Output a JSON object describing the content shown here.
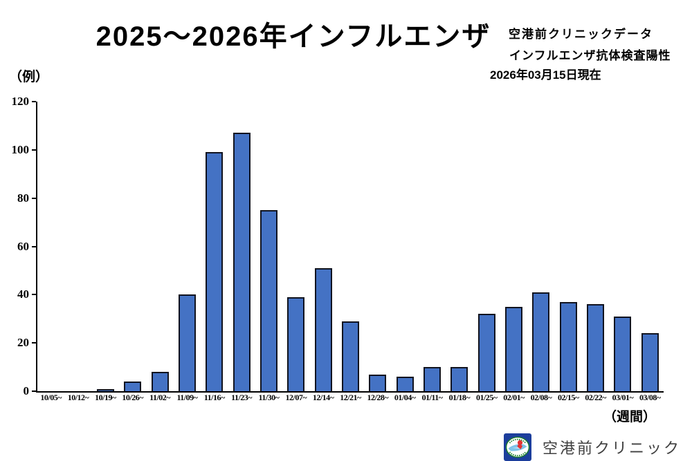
{
  "header": {
    "title": "2025〜2026年インフルエンザ",
    "source_line1": "空港前クリニックデータ",
    "source_line2": "インフルエンザ抗体検査陽性",
    "as_of": "2026年03月15日現在"
  },
  "axes": {
    "y_unit": "（例）",
    "x_unit": "（週間）"
  },
  "footer": {
    "clinic_name": "空港前クリニック"
  },
  "colors": {
    "bar_fill": "#4472C4",
    "bar_border": "#10131f",
    "axis": "#000000"
  },
  "chart_data": {
    "type": "bar",
    "title": "2025〜2026年インフルエンザ",
    "subtitle": "空港前クリニックデータ インフルエンザ抗体検査陽性 2026年03月15日現在",
    "xlabel": "（週間）",
    "ylabel": "（例）",
    "categories": [
      "10/05~",
      "10/12~",
      "10/19~",
      "10/26~",
      "11/02~",
      "11/09~",
      "11/16~",
      "11/23~",
      "11/30~",
      "12/07~",
      "12/14~",
      "12/21~",
      "12/28~",
      "01/04~",
      "01/11~",
      "01/18~",
      "01/25~",
      "02/01~",
      "02/08~",
      "02/15~",
      "02/22~",
      "03/01~",
      "03/08~"
    ],
    "values": [
      0,
      0,
      1,
      4,
      8,
      40,
      99,
      107,
      75,
      39,
      51,
      29,
      7,
      6,
      10,
      10,
      32,
      35,
      41,
      37,
      36,
      31,
      24
    ],
    "ylim": [
      0,
      120
    ],
    "ytick_step": 20,
    "grid": false,
    "legend": "none"
  }
}
